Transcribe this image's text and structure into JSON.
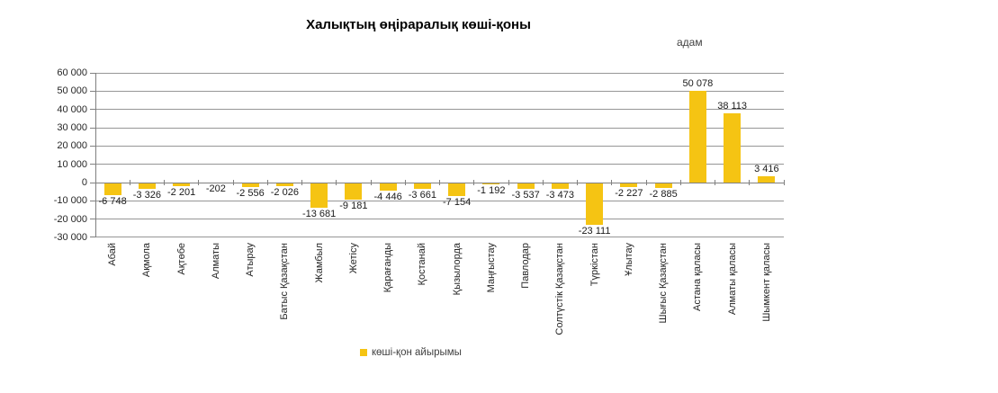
{
  "title": "Халықтың өңіраралық көші-қоны",
  "units_label": "адам",
  "legend": {
    "label": "көші-қон айырымы",
    "swatch_color": "#F5C413"
  },
  "colors": {
    "bar": "#F5C413",
    "gridline": "#969696",
    "axis": "#808080",
    "tick_label_text": "#262626",
    "value_label_text": "#1a1a1a"
  },
  "chart_data": {
    "type": "bar",
    "title": "Халықтың өңіраралық көші-қоны",
    "xlabel": "",
    "ylabel": "адам",
    "ylim": [
      -30000,
      60000
    ],
    "ytick_step": 10000,
    "ytick_labels": [
      "60 000",
      "50 000",
      "40 000",
      "30 000",
      "20 000",
      "10 000",
      "0",
      "-10 000",
      "-20 000",
      "-30 000"
    ],
    "grid": true,
    "legend_position": "bottom",
    "categories": [
      "Абай",
      "Ақмола",
      "Ақтөбе",
      "Алматы",
      "Атырау",
      "Батыс Қазақстан",
      "Жамбыл",
      "Жетісу",
      "Қарағанды",
      "Қостанай",
      "Қызылорда",
      "Маңғыстау",
      "Павлодар",
      "Солтүстік Қазақстан",
      "Түркістан",
      "Ұлытау",
      "Шығыс Қазақстан",
      "Астана қаласы",
      "Алматы қаласы",
      "Шымкент қаласы"
    ],
    "series": [
      {
        "name": "көші-қон айырымы",
        "values": [
          -6748,
          -3326,
          -2201,
          -202,
          -2556,
          -2026,
          -13681,
          -9181,
          -4446,
          -3661,
          -7154,
          -1192,
          -3537,
          -3473,
          -23111,
          -2227,
          -2885,
          50078,
          38113,
          3416
        ],
        "value_labels": [
          "-6 748",
          "-3 326",
          "-2 201",
          "-202",
          "-2 556",
          "-2 026",
          "-13 681",
          "-9 181",
          "-4 446",
          "-3 661",
          "-7 154",
          "-1 192",
          "-3 537",
          "-3 473",
          "-23 111",
          "-2 227",
          "-2 885",
          "50 078",
          "38 113",
          "3 416"
        ]
      }
    ]
  }
}
